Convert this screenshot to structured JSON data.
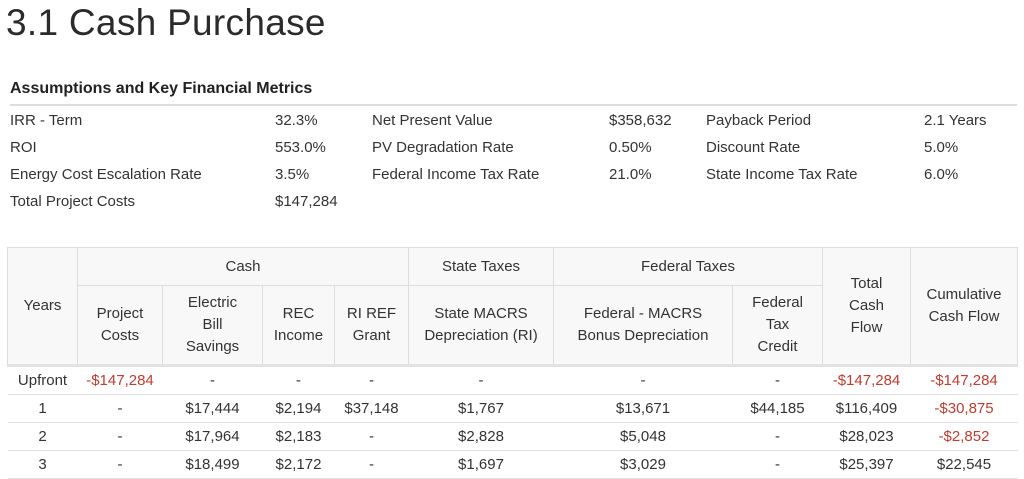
{
  "title": "3.1 Cash Purchase",
  "metrics": {
    "heading": "Assumptions and Key Financial Metrics",
    "rows": [
      [
        "IRR - Term",
        "32.3%",
        "Net Present Value",
        "$358,632",
        "Payback Period",
        "2.1 Years"
      ],
      [
        "ROI",
        "553.0%",
        "PV Degradation Rate",
        "0.50%",
        "Discount Rate",
        "5.0%"
      ],
      [
        "Energy Cost Escalation Rate",
        "3.5%",
        "Federal Income Tax Rate",
        "21.0%",
        "State Income Tax Rate",
        "6.0%"
      ],
      [
        "Total Project Costs",
        "$147,284"
      ]
    ]
  },
  "table": {
    "groups": [
      "Cash",
      "State Taxes",
      "Federal Taxes"
    ],
    "columns": [
      "Years",
      "Project Costs",
      "Electric Bill Savings",
      "REC Income",
      "RI REF Grant",
      "State MACRS Depreciation (RI)",
      "Federal - MACRS Bonus Depreciation",
      "Federal Tax Credit",
      "Total Cash Flow",
      "Cumulative Cash Flow"
    ],
    "rows": [
      [
        "Upfront",
        "-$147,284",
        "-",
        "-",
        "-",
        "-",
        "-",
        "-",
        "-$147,284",
        "-$147,284"
      ],
      [
        "1",
        "-",
        "$17,444",
        "$2,194",
        "$37,148",
        "$1,767",
        "$13,671",
        "$44,185",
        "$116,409",
        "-$30,875"
      ],
      [
        "2",
        "-",
        "$17,964",
        "$2,183",
        "-",
        "$2,828",
        "$5,048",
        "-",
        "$28,023",
        "-$2,852"
      ],
      [
        "3",
        "-",
        "$18,499",
        "$2,172",
        "-",
        "$1,697",
        "$3,029",
        "-",
        "$25,397",
        "$22,545"
      ]
    ]
  }
}
